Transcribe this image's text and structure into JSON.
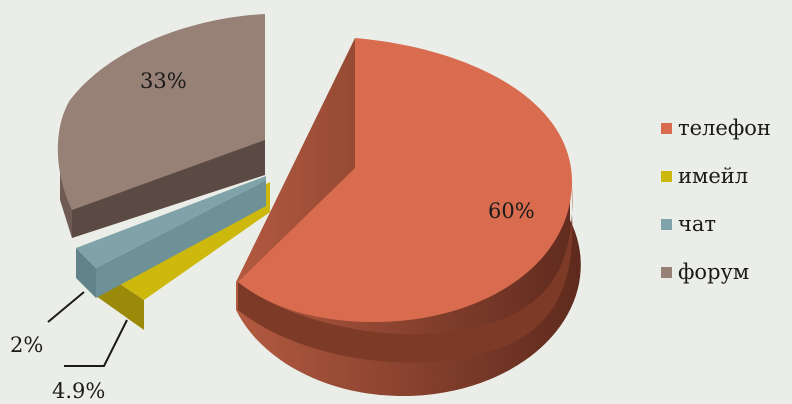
{
  "chart_data": {
    "type": "pie",
    "variant": "3d-exploded",
    "categories": [
      "телефон",
      "имейл",
      "чат",
      "форум"
    ],
    "values": [
      60,
      4.9,
      2,
      33
    ],
    "labels": [
      "60%",
      "4.9%",
      "2%",
      "33%"
    ],
    "colors": [
      "#d96c4f",
      "#cdb90d",
      "#7fa3a8",
      "#978176"
    ],
    "legend_position": "right"
  }
}
